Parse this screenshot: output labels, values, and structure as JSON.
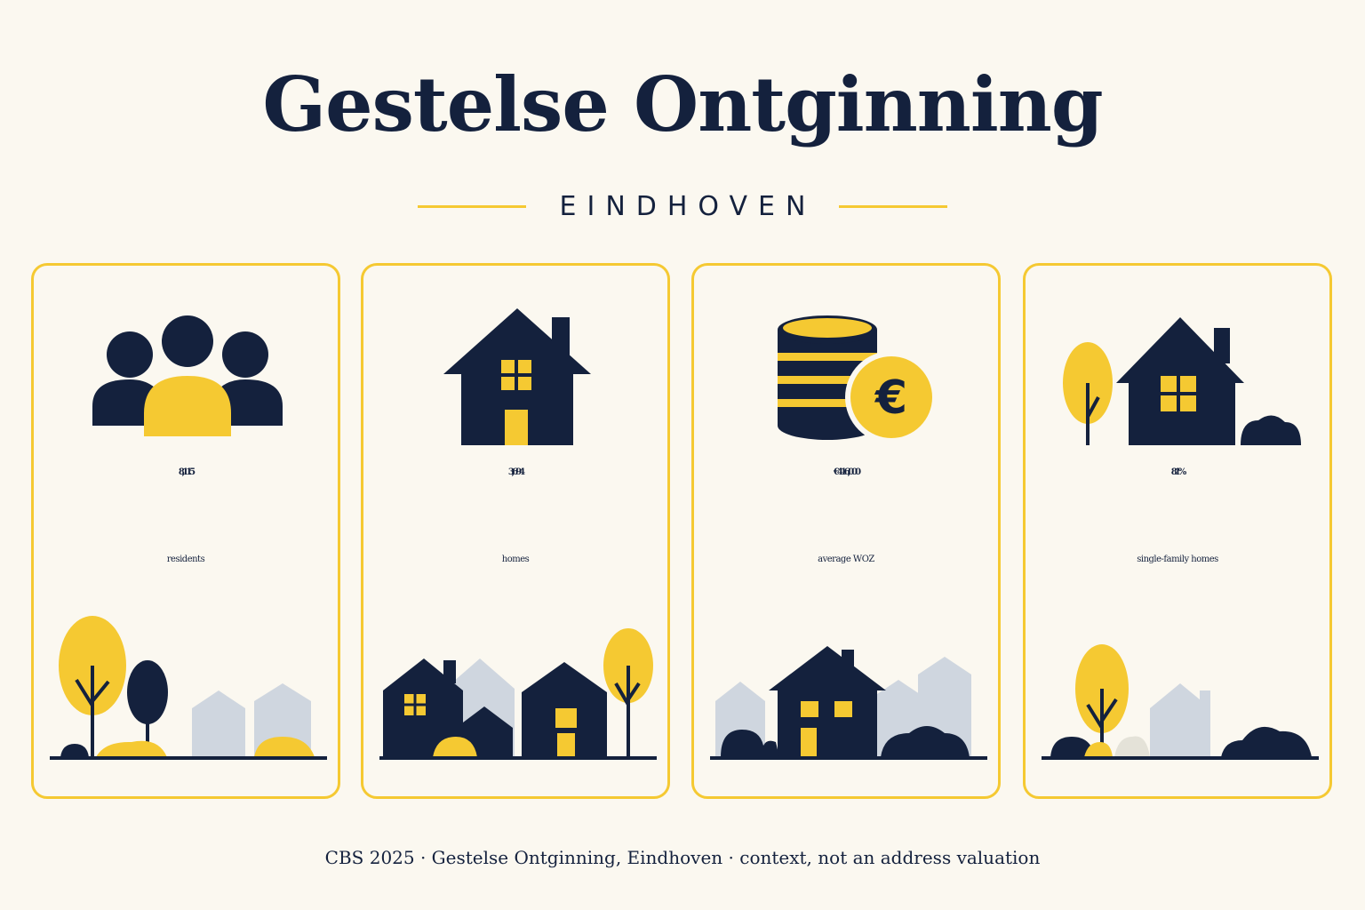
{
  "header": {
    "title": "Gestelse Ontginning",
    "subtitle": "EINDHOVEN"
  },
  "stats": [
    {
      "value": "8,115",
      "label": "residents",
      "icon": "people-icon"
    },
    {
      "value": "3,694",
      "label": "homes",
      "icon": "house-icon"
    },
    {
      "value": "€416,000",
      "label": "average WOZ",
      "icon": "euro-coins-icon"
    },
    {
      "value": "81%",
      "label": "single-family homes",
      "icon": "detached-house-icon"
    }
  ],
  "footer": {
    "text": "CBS 2025 · Gestelse Ontginning, Eindhoven · context, not an address valuation"
  },
  "colors": {
    "navy": "#14213d",
    "yellow": "#f5c932",
    "grey": "#cfd6df",
    "background": "#fbf8f0"
  }
}
